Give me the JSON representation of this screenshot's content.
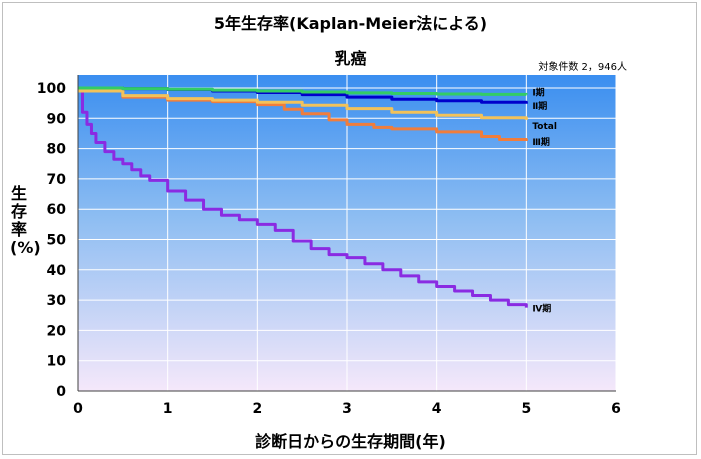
{
  "title": "5年生存率(Kaplan-Meier法による)",
  "subtitle": "乳癌",
  "count_note": "対象件数 2，946人",
  "ylabel": "生存率(%)",
  "xlabel": "診断日からの生存期間(年)",
  "colors": {
    "stage1": "#33cc66",
    "stage2": "#0000cc",
    "total": "#f2c25a",
    "stage3": "#f07d3c",
    "stage4": "#8a2be2"
  },
  "chart_data": {
    "type": "line",
    "title": "5年生存率(Kaplan-Meier法による)",
    "subtitle": "乳癌",
    "xlabel": "診断日からの生存期間(年)",
    "ylabel": "生存率(%)",
    "xlim": [
      0,
      6
    ],
    "ylim": [
      0,
      100
    ],
    "x_ticks": [
      "0",
      "1",
      "2",
      "3",
      "4",
      "5",
      "6"
    ],
    "y_ticks": [
      "0",
      "10",
      "20",
      "30",
      "40",
      "50",
      "60",
      "70",
      "80",
      "90",
      "100"
    ],
    "grid": true,
    "series": [
      {
        "name": "Ⅰ期",
        "color": "#33cc66",
        "x": [
          0,
          0.5,
          1,
          1.5,
          2,
          2.5,
          3,
          3.5,
          4,
          4.5,
          5
        ],
        "y": [
          100,
          99.8,
          99.6,
          99.3,
          99,
          98.7,
          98.4,
          98.2,
          98,
          97.9,
          97.8
        ]
      },
      {
        "name": "Ⅱ期",
        "color": "#0000cc",
        "x": [
          0,
          0.5,
          1,
          1.5,
          2,
          2.5,
          3,
          3.5,
          4,
          4.5,
          5
        ],
        "y": [
          100,
          99.8,
          99.5,
          99,
          98.5,
          97.8,
          97,
          96.3,
          95.8,
          95.3,
          94.8
        ]
      },
      {
        "name": "Total",
        "color": "#f2c25a",
        "x": [
          0,
          0.5,
          1,
          1.5,
          2,
          2.5,
          3,
          3.5,
          4,
          4.5,
          5
        ],
        "y": [
          99,
          97.5,
          96.5,
          96,
          95.3,
          94.3,
          93.2,
          92,
          91,
          90.2,
          89.5
        ]
      },
      {
        "name": "Ⅲ期",
        "color": "#f07d3c",
        "x": [
          0,
          0.5,
          1,
          1.5,
          2,
          2.3,
          2.5,
          2.8,
          3,
          3.3,
          3.5,
          4,
          4.5,
          4.7,
          5
        ],
        "y": [
          100,
          97,
          96,
          95.5,
          94.5,
          93,
          91.5,
          89.5,
          88,
          87,
          86.5,
          85.5,
          84,
          83,
          82.5
        ]
      },
      {
        "name": "Ⅳ期",
        "color": "#8a2be2",
        "x": [
          0,
          0.05,
          0.1,
          0.15,
          0.2,
          0.3,
          0.4,
          0.5,
          0.6,
          0.7,
          0.8,
          1,
          1.2,
          1.4,
          1.6,
          1.8,
          2,
          2.2,
          2.4,
          2.6,
          2.8,
          3,
          3.2,
          3.4,
          3.6,
          3.8,
          4,
          4.2,
          4.4,
          4.6,
          4.8,
          5
        ],
        "y": [
          99,
          92,
          88,
          85,
          82,
          79,
          76.5,
          75,
          73,
          71,
          69.5,
          66,
          63,
          60,
          58,
          56.5,
          55,
          53,
          49.5,
          47,
          45,
          44,
          42,
          40,
          38,
          36,
          34.5,
          33,
          31.5,
          30,
          28.5,
          27.5
        ]
      }
    ]
  }
}
